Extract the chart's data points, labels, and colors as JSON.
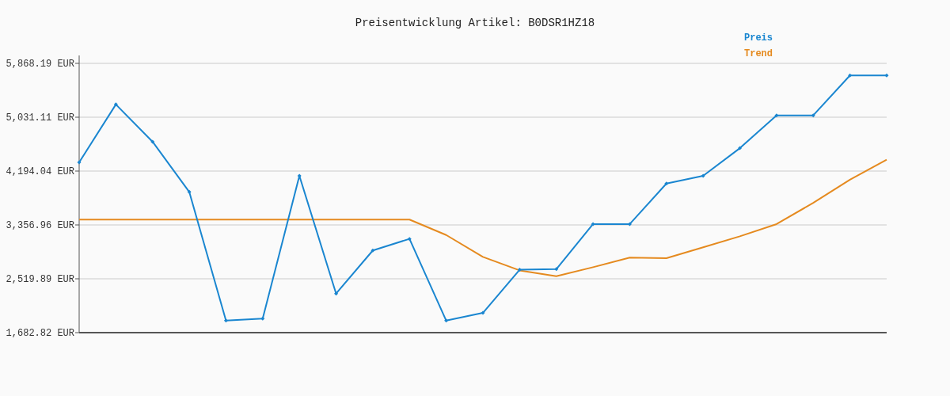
{
  "chart_data": {
    "type": "line",
    "title": "Preisentwicklung Artikel: B0DSR1HZ18",
    "categories": [
      null,
      null,
      null,
      null,
      null,
      null,
      null,
      null,
      null,
      null,
      null,
      null,
      null,
      null,
      null,
      null,
      null,
      null,
      null,
      null,
      null,
      null,
      null
    ],
    "series": [
      {
        "name": "Preis",
        "color": "#1a86d0",
        "marker": "diamond",
        "values": [
          4330,
          5230,
          4650,
          3870,
          1870,
          1900,
          4120,
          2290,
          2960,
          3140,
          1870,
          1990,
          2660,
          2670,
          3370,
          3370,
          4000,
          4120,
          4550,
          5060,
          5060,
          5680,
          5680
        ]
      },
      {
        "name": "Trend",
        "color": "#e58a1f",
        "marker": "none",
        "values": [
          3440,
          3440,
          3440,
          3440,
          3440,
          3440,
          3440,
          3440,
          3440,
          3440,
          3200,
          2860,
          2650,
          2560,
          2700,
          2850,
          2840,
          3010,
          3180,
          3370,
          3700,
          4060,
          4370
        ]
      }
    ],
    "ylim": [
      1682.82,
      5868.19
    ],
    "yticks": [
      {
        "value": 1682.82,
        "label": "1,682.82 EUR"
      },
      {
        "value": 2519.89,
        "label": "2,519.89 EUR"
      },
      {
        "value": 3356.96,
        "label": "3,356.96 EUR"
      },
      {
        "value": 4194.04,
        "label": "4,194.04 EUR"
      },
      {
        "value": 5031.11,
        "label": "5,031.11 EUR"
      },
      {
        "value": 5868.19,
        "label": "5,868.19 EUR"
      }
    ],
    "grid": "y",
    "legend": "top right",
    "line_style": "solid"
  }
}
